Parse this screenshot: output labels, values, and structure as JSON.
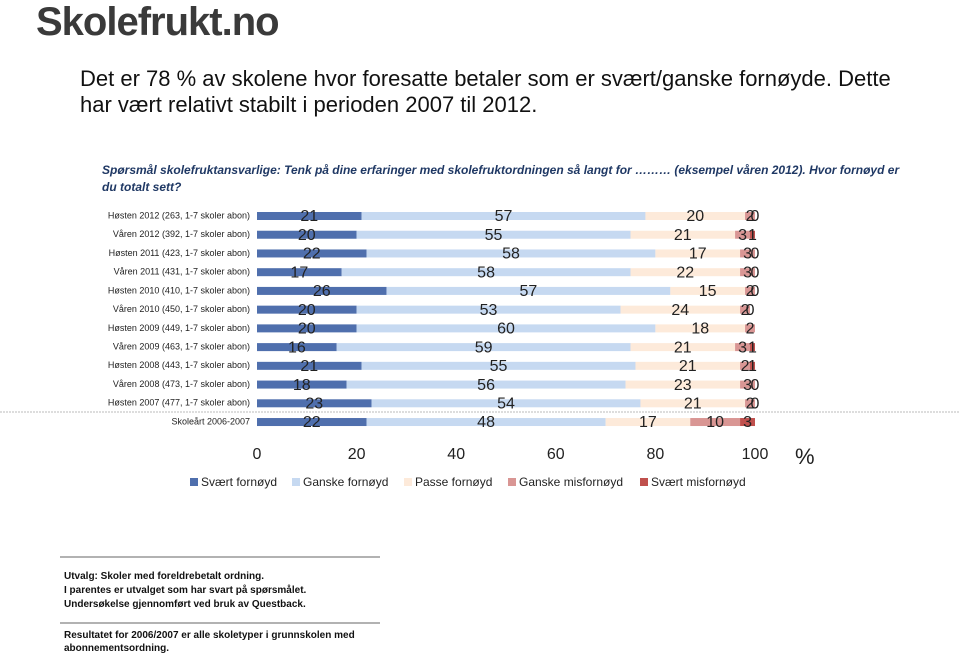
{
  "logo": "Skolefrukt.no",
  "heading": "Det er 78 % av skolene hvor foresatte betaler som er svært/ganske fornøyde. Dette har vært relativt stabilt i perioden 2007 til 2012.",
  "question": "Spørsmål skolefruktansvarlige: Tenk på dine erfaringer med skolefruktordningen så langt for ……… (eksempel våren 2012). Hvor fornøyd er du totalt sett?",
  "notes": [
    "Utvalg: Skoler med foreldrebetalt ordning.",
    "I parentes er utvalget som har svart på spørsmålet.",
    "Undersøkelse gjennomført ved bruk av Questback."
  ],
  "footnote": "Resultatet for 2006/2007 er alle skoletyper i grunnskolen med abonnementsordning.",
  "chart_data": {
    "type": "stacked_bar_horizontal",
    "categories": [
      "Høsten 2012 (263, 1-7 skoler abon)",
      "Våren 2012 (392, 1-7 skoler abon)",
      "Høsten 2011 (423, 1-7 skoler abon)",
      "Våren 2011 (431, 1-7 skoler abon)",
      "Høsten 2010 (410, 1-7 skoler abon)",
      "Våren 2010 (450, 1-7 skoler abon)",
      "Høsten 2009 (449, 1-7 skoler abon)",
      "Våren 2009 (463, 1-7 skoler abon)",
      "Høsten 2008  (443, 1-7 skoler abon)",
      "Våren 2008 (473, 1-7 skoler abon)",
      "Høsten 2007 (477, 1-7 skoler abon)",
      "Skoleårt 2006-2007"
    ],
    "series": [
      {
        "name": "Svært fornøyd",
        "color": "#4f6fad",
        "values": [
          21,
          20,
          22,
          17,
          26,
          20,
          20,
          16,
          21,
          18,
          23,
          22
        ]
      },
      {
        "name": "Ganske fornøyd",
        "color": "#c6d9f1",
        "values": [
          57,
          55,
          58,
          58,
          57,
          53,
          60,
          59,
          55,
          56,
          54,
          48
        ]
      },
      {
        "name": "Passe fornøyd",
        "color": "#fdeada",
        "values": [
          20,
          21,
          17,
          22,
          15,
          24,
          18,
          21,
          21,
          23,
          21,
          17
        ]
      },
      {
        "name": "Ganske misfornøyd",
        "color": "#d99694",
        "values": [
          2,
          3,
          3,
          3,
          2,
          2,
          2,
          3,
          2,
          3,
          2,
          10
        ]
      },
      {
        "name": "Svært misfornøyd",
        "color": "#c0504d",
        "values": [
          0,
          1,
          0,
          0,
          0,
          0,
          null,
          1,
          1,
          0,
          0,
          3
        ]
      }
    ],
    "xlim": [
      0,
      100
    ],
    "xticks": [
      0,
      20,
      40,
      60,
      80,
      100
    ],
    "xlabel": "%"
  }
}
